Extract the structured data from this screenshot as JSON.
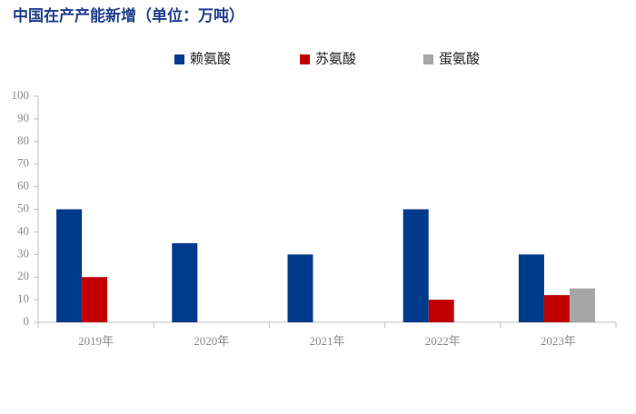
{
  "chart_data": {
    "type": "bar",
    "title": "中国在产产能新增（单位：万吨）",
    "categories": [
      "2019年",
      "2020年",
      "2021年",
      "2022年",
      "2023年"
    ],
    "series": [
      {
        "name": "赖氨酸",
        "color": "#003a8c",
        "values": [
          50,
          35,
          30,
          50,
          30
        ]
      },
      {
        "name": "苏氨酸",
        "color": "#c00000",
        "values": [
          20,
          null,
          null,
          10,
          12
        ]
      },
      {
        "name": "蛋氨酸",
        "color": "#a6a6a6",
        "values": [
          null,
          null,
          null,
          null,
          15
        ]
      }
    ],
    "ylim": [
      0,
      100
    ],
    "yticks": [
      0,
      10,
      20,
      30,
      40,
      50,
      60,
      70,
      80,
      90,
      100
    ],
    "legend": "top"
  }
}
